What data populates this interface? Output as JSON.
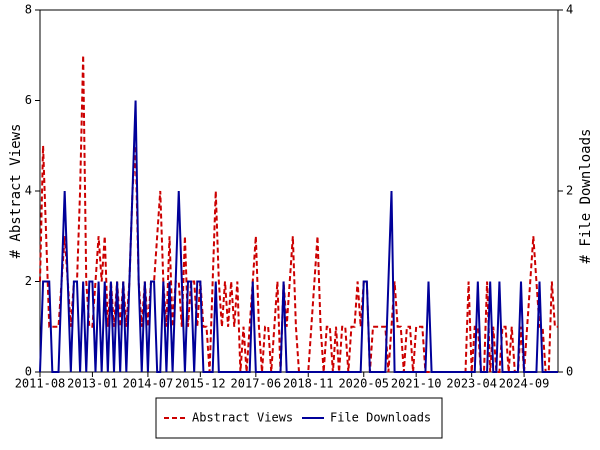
{
  "chart_data": {
    "type": "line",
    "y_label": "# Abstract Views",
    "y2_label": "# File Downloads",
    "x": [
      "2011-08",
      "2011-09",
      "2011-10",
      "2011-11",
      "2011-12",
      "2012-01",
      "2012-02",
      "2012-03",
      "2012-04",
      "2012-05",
      "2012-06",
      "2012-07",
      "2012-08",
      "2012-09",
      "2012-10",
      "2012-11",
      "2012-12",
      "2013-01",
      "2013-02",
      "2013-03",
      "2013-04",
      "2013-05",
      "2013-06",
      "2013-07",
      "2013-08",
      "2013-09",
      "2013-10",
      "2013-11",
      "2013-12",
      "2014-01",
      "2014-02",
      "2014-03",
      "2014-04",
      "2014-05",
      "2014-06",
      "2014-07",
      "2014-08",
      "2014-09",
      "2014-10",
      "2014-11",
      "2014-12",
      "2015-01",
      "2015-02",
      "2015-03",
      "2015-04",
      "2015-05",
      "2015-06",
      "2015-07",
      "2015-08",
      "2015-09",
      "2015-10",
      "2015-11",
      "2015-12",
      "2016-01",
      "2016-02",
      "2016-03",
      "2016-04",
      "2016-05",
      "2016-06",
      "2016-07",
      "2016-08",
      "2016-09",
      "2016-10",
      "2016-11",
      "2016-12",
      "2017-01",
      "2017-02",
      "2017-03",
      "2017-04",
      "2017-05",
      "2017-06",
      "2017-07",
      "2017-08",
      "2017-09",
      "2017-10",
      "2017-11",
      "2017-12",
      "2018-01",
      "2018-02",
      "2018-03",
      "2018-04",
      "2018-05",
      "2018-06",
      "2018-07",
      "2018-08",
      "2018-09",
      "2018-10",
      "2018-11",
      "2018-12",
      "2019-01",
      "2019-02",
      "2019-03",
      "2019-04",
      "2019-05",
      "2019-06",
      "2019-07",
      "2019-08",
      "2019-09",
      "2019-10",
      "2019-11",
      "2019-12",
      "2020-01",
      "2020-02",
      "2020-03",
      "2020-04",
      "2020-05",
      "2020-06",
      "2020-07",
      "2020-08",
      "2020-09",
      "2020-10",
      "2020-11",
      "2020-12",
      "2021-01",
      "2021-02",
      "2021-03",
      "2021-04",
      "2021-05",
      "2021-06",
      "2021-07",
      "2021-08",
      "2021-09",
      "2021-10",
      "2021-11",
      "2021-12",
      "2022-01",
      "2022-02",
      "2022-03",
      "2022-04",
      "2022-05",
      "2022-06",
      "2022-07",
      "2022-08",
      "2022-09",
      "2022-10",
      "2022-11",
      "2022-12",
      "2023-01",
      "2023-02",
      "2023-03",
      "2023-04",
      "2023-05",
      "2023-06",
      "2023-07",
      "2023-08",
      "2023-09",
      "2023-10",
      "2023-11",
      "2023-12",
      "2024-01",
      "2024-02",
      "2024-03",
      "2024-04",
      "2024-05",
      "2024-06",
      "2024-07",
      "2024-08",
      "2024-09",
      "2024-10",
      "2024-11",
      "2024-12",
      "2025-01",
      "2025-02",
      "2025-03",
      "2025-04",
      "2025-05",
      "2025-06",
      "2025-07",
      "2025-08"
    ],
    "xticks": [
      "2011-08",
      "2013-01",
      "2014-07",
      "2015-12",
      "2017-06",
      "2018-11",
      "2020-05",
      "2021-10",
      "2023-04",
      "2024-09"
    ],
    "series": [
      {
        "name": "Abstract Views",
        "color": "#cc0000",
        "dash": true,
        "values": [
          2,
          5,
          3,
          1,
          1,
          1,
          1,
          2,
          3,
          2,
          1,
          2,
          2,
          4,
          7,
          2,
          1,
          1,
          2,
          3,
          2,
          3,
          1,
          2,
          1,
          2,
          1,
          2,
          1,
          2,
          4,
          5,
          2,
          1,
          2,
          1,
          2,
          2,
          3,
          4,
          2,
          1,
          3,
          1,
          2,
          2,
          1,
          3,
          1,
          2,
          2,
          1,
          2,
          1,
          1,
          0,
          2,
          4,
          2,
          1,
          2,
          1,
          2,
          1,
          2,
          0,
          1,
          0,
          1,
          2,
          3,
          1,
          0,
          1,
          1,
          0,
          1,
          2,
          0,
          2,
          1,
          2,
          3,
          1,
          0,
          0,
          0,
          0,
          1,
          2,
          3,
          1,
          0,
          1,
          1,
          0,
          1,
          0,
          1,
          1,
          0,
          1,
          1,
          2,
          1,
          2,
          2,
          0,
          1,
          1,
          1,
          1,
          1,
          0,
          1,
          2,
          1,
          1,
          0,
          1,
          1,
          0,
          1,
          1,
          1,
          0,
          0,
          0,
          0,
          0,
          0,
          0,
          0,
          0,
          0,
          0,
          0,
          0,
          0,
          2,
          0,
          1,
          1,
          0,
          0,
          2,
          0,
          1,
          0,
          0,
          1,
          1,
          0,
          1,
          0,
          0,
          1,
          0,
          1,
          2,
          3,
          2,
          1,
          1,
          0,
          0,
          2,
          1,
          1
        ]
      },
      {
        "name": "File Downloads",
        "color": "#000099",
        "dash": false,
        "axis": "y2",
        "values": [
          0,
          1,
          1,
          1,
          0,
          0,
          0,
          1,
          2,
          1,
          0,
          1,
          1,
          0,
          1,
          0,
          1,
          1,
          0,
          1,
          0,
          1,
          0,
          1,
          0,
          1,
          0,
          1,
          0,
          1,
          2,
          3,
          1,
          0,
          1,
          0,
          1,
          1,
          0,
          0,
          1,
          0,
          1,
          0,
          1,
          2,
          1,
          0,
          1,
          1,
          0,
          1,
          1,
          0,
          0,
          0,
          0,
          1,
          0,
          0,
          0,
          0,
          0,
          0,
          0,
          0,
          0,
          0,
          0,
          1,
          0,
          0,
          0,
          0,
          0,
          0,
          0,
          0,
          0,
          1,
          0,
          0,
          0,
          0,
          0,
          0,
          0,
          0,
          0,
          0,
          0,
          0,
          0,
          0,
          0,
          0,
          0,
          0,
          0,
          0,
          0,
          0,
          0,
          0,
          0,
          1,
          1,
          0,
          0,
          0,
          0,
          0,
          0,
          1,
          2,
          0,
          0,
          0,
          0,
          0,
          0,
          0,
          0,
          0,
          0,
          0,
          1,
          0,
          0,
          0,
          0,
          0,
          0,
          0,
          0,
          0,
          0,
          0,
          0,
          0,
          0,
          0,
          1,
          0,
          0,
          0,
          1,
          0,
          0,
          1,
          0,
          0,
          0,
          0,
          0,
          0,
          1,
          0,
          0,
          0,
          0,
          0,
          1,
          0,
          0,
          0,
          0,
          0,
          0
        ]
      }
    ],
    "ylim": [
      0,
      8
    ],
    "yticks": [
      0,
      2,
      4,
      6,
      8
    ],
    "y2lim": [
      0,
      4
    ],
    "y2ticks": [
      0,
      2,
      4
    ],
    "grid": false,
    "legend": "bottom"
  }
}
